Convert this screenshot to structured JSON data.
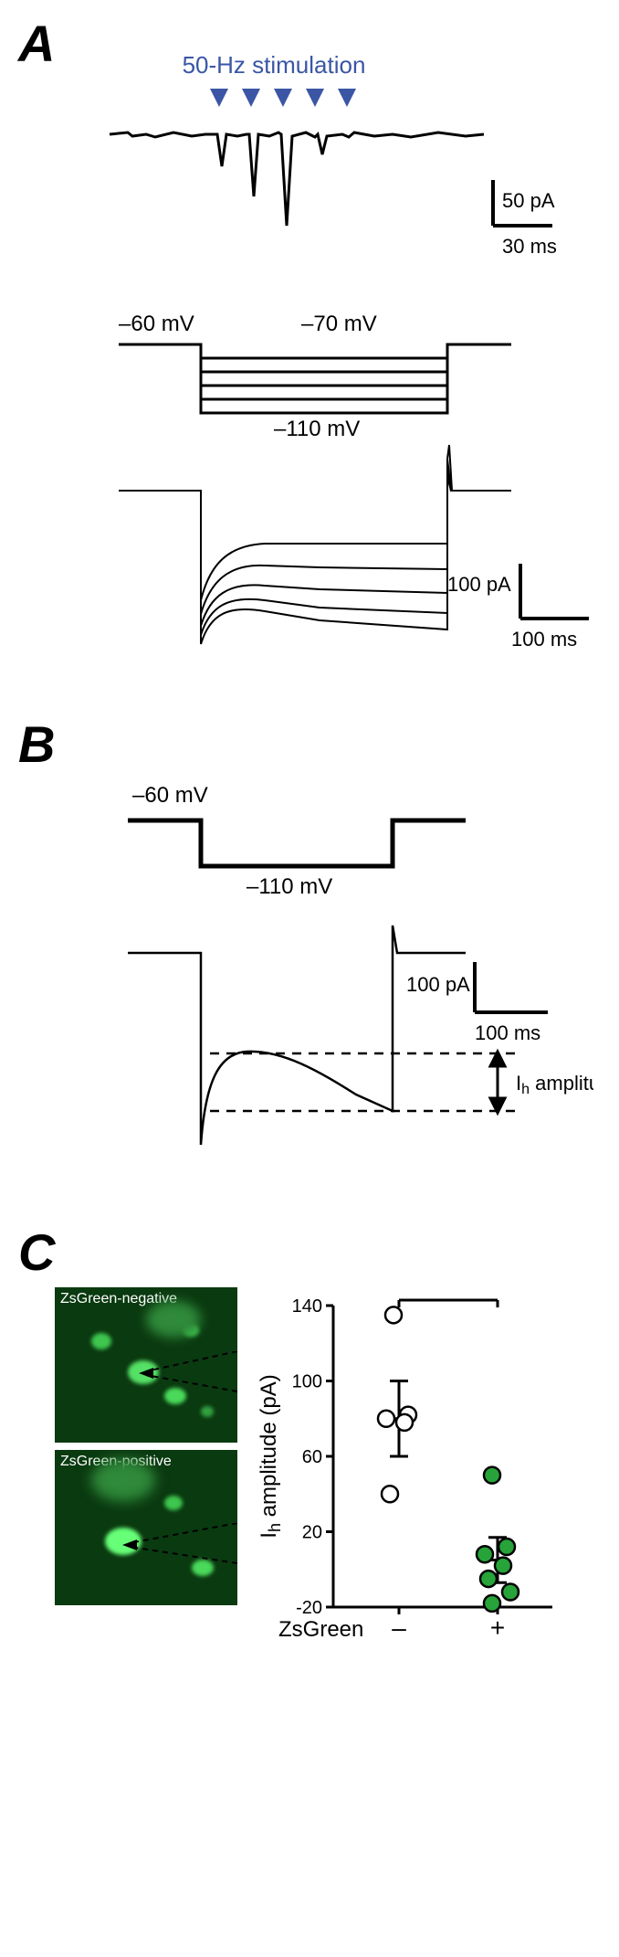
{
  "panelA": {
    "label": "A",
    "stim_label": "50-Hz stimulation",
    "stim_label_color": "#3a56a5",
    "marker_color": "#3a56a5",
    "n_markers": 5,
    "scalebar1": {
      "y_label": "50 pA",
      "x_label": "30 ms"
    },
    "protocol": {
      "hold_label": "–60 mV",
      "top_step_label": "–70 mV",
      "bottom_step_label": "–110 mV"
    },
    "scalebar2": {
      "y_label": "100 pA",
      "x_label": "100 ms"
    }
  },
  "panelB": {
    "label": "B",
    "protocol": {
      "hold_label": "–60 mV",
      "step_label": "–110 mV"
    },
    "ih_label": "Ih amplitude",
    "scalebar": {
      "y_label": "100 pA",
      "x_label": "100 ms"
    }
  },
  "panelC": {
    "label": "C",
    "img_neg_label": "ZsGreen-negative",
    "img_pos_label": "ZsGreen-positive",
    "green": "#2e8b3e",
    "bright_green": "#4be35a",
    "scatter": {
      "ylabel": "Ih amplitude (pA)",
      "xlabel": "ZsGreen",
      "xcat_neg": "–",
      "xcat_pos": "+",
      "sig_label": "***",
      "ylim": [
        -20,
        140
      ],
      "yticks": [
        -20,
        20,
        60,
        100,
        140
      ],
      "ytick_labels": [
        "-20",
        "20",
        "60",
        "100",
        "140"
      ],
      "neg": {
        "points": [
          135,
          82,
          80,
          78,
          40
        ],
        "mean": 80,
        "err": 20,
        "marker_fill": "#ffffff",
        "marker_stroke": "#000000"
      },
      "pos": {
        "points": [
          50,
          12,
          8,
          2,
          -5,
          -12,
          -18
        ],
        "mean": 5,
        "err": 12,
        "marker_fill": "#27a33a",
        "marker_stroke": "#000000"
      },
      "axis_color": "#000000",
      "label_fontsize": 24,
      "tick_fontsize": 20
    }
  }
}
